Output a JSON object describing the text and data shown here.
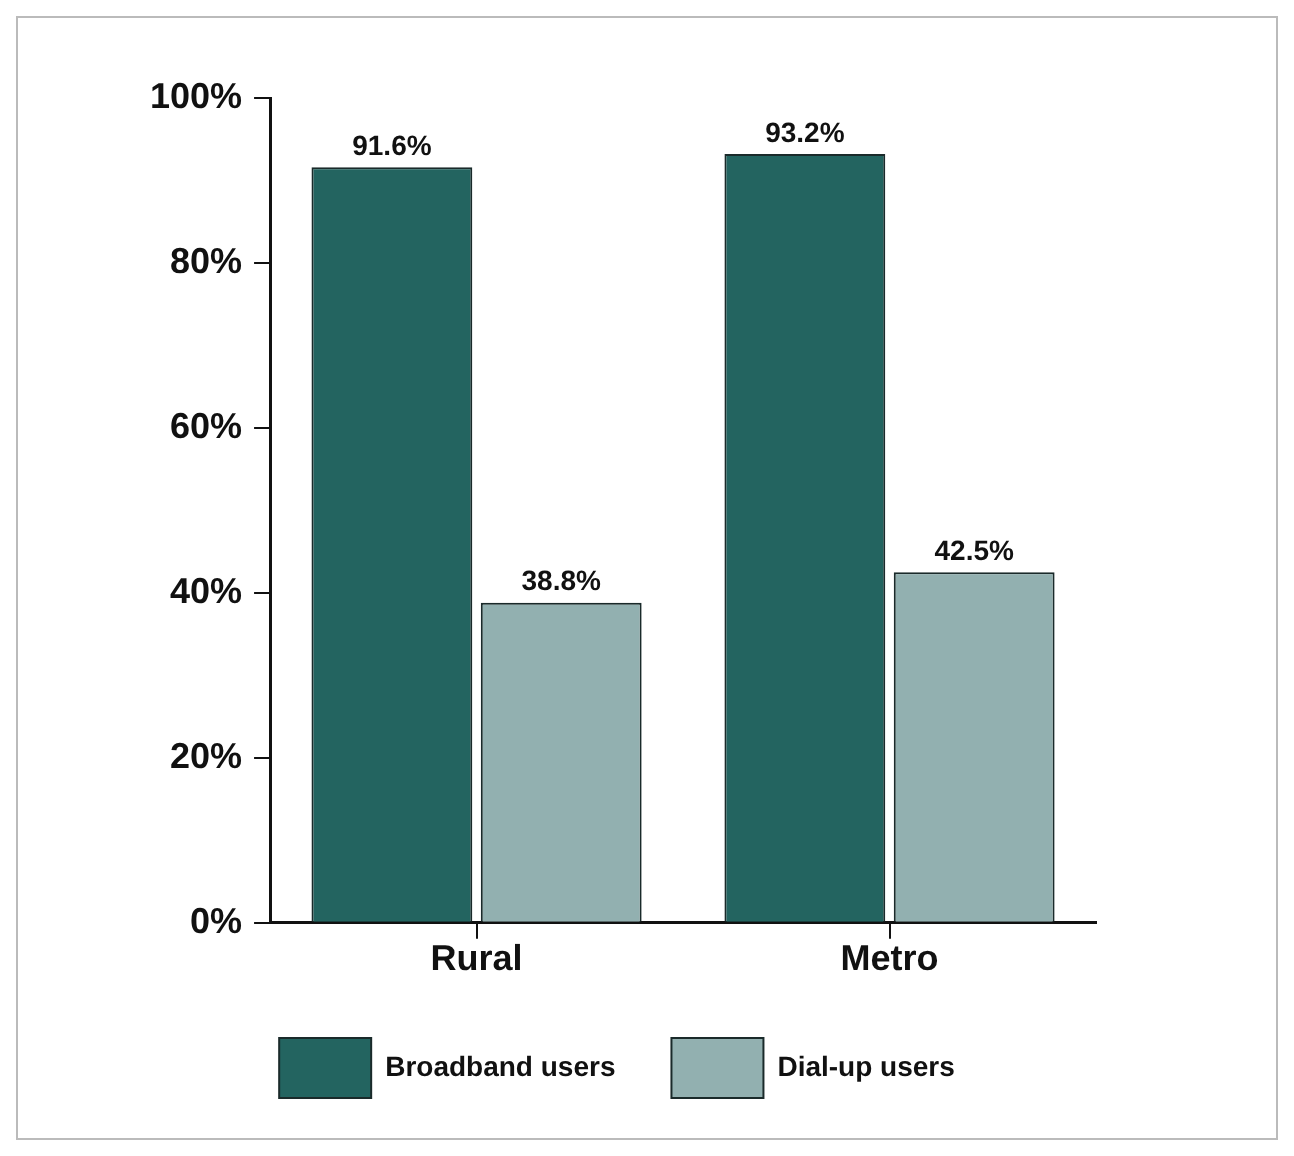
{
  "chart_data": {
    "type": "bar",
    "categories": [
      "Rural",
      "Metro"
    ],
    "series": [
      {
        "name": "Broadband users",
        "color": "#236460",
        "values": [
          91.6,
          93.2
        ],
        "value_labels": [
          "91.6%",
          "93.2%"
        ]
      },
      {
        "name": "Dial-up users",
        "color": "#92b0b0",
        "values": [
          38.8,
          42.5
        ],
        "value_labels": [
          "38.8%",
          "42.5%"
        ]
      }
    ],
    "ylim": [
      0,
      100
    ],
    "yticks": [
      {
        "value": 0,
        "label": "0%"
      },
      {
        "value": 20,
        "label": "20%"
      },
      {
        "value": 40,
        "label": "40%"
      },
      {
        "value": 60,
        "label": "60%"
      },
      {
        "value": 80,
        "label": "80%"
      },
      {
        "value": 100,
        "label": "100%"
      }
    ],
    "grid": false,
    "legend": "bottom"
  }
}
